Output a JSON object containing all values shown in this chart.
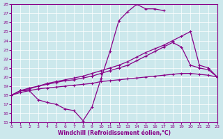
{
  "xlabel": "Windchill (Refroidissement éolien,°C)",
  "xlim": [
    0,
    23
  ],
  "ylim": [
    15,
    28
  ],
  "bg_color": "#cce8ec",
  "line_color": "#880088",
  "grid_color": "#ffffff",
  "line1_x": [
    0,
    1,
    2,
    3,
    4,
    5,
    6,
    7,
    8,
    9,
    10,
    11,
    12,
    13,
    14,
    15,
    16,
    17
  ],
  "line1_y": [
    18.0,
    18.5,
    18.5,
    17.5,
    17.2,
    17.0,
    16.5,
    16.3,
    15.2,
    16.7,
    19.8,
    22.8,
    26.2,
    27.2,
    28.0,
    27.5,
    27.5,
    27.3
  ],
  "line2_x": [
    0,
    1,
    2,
    3,
    4,
    5,
    6,
    7,
    8,
    9,
    10,
    11,
    12,
    13,
    14,
    15,
    16,
    17,
    18,
    19,
    20,
    21,
    22,
    23
  ],
  "line2_y": [
    18.0,
    18.3,
    18.5,
    18.7,
    18.8,
    18.9,
    19.0,
    19.1,
    19.2,
    19.3,
    19.5,
    19.6,
    19.7,
    19.8,
    19.9,
    20.0,
    20.1,
    20.2,
    20.3,
    20.4,
    20.4,
    20.3,
    20.2,
    20.0
  ],
  "line3_x": [
    0,
    1,
    2,
    3,
    4,
    5,
    6,
    7,
    8,
    9,
    10,
    11,
    12,
    13,
    14,
    15,
    16,
    17,
    18,
    19,
    20,
    21,
    22,
    23
  ],
  "line3_y": [
    18.0,
    18.5,
    18.7,
    19.0,
    19.2,
    19.4,
    19.6,
    19.7,
    19.9,
    20.1,
    20.4,
    20.7,
    21.0,
    21.3,
    21.8,
    22.3,
    22.8,
    23.3,
    23.8,
    23.3,
    21.3,
    21.0,
    20.8,
    20.0
  ],
  "line4_x": [
    0,
    1,
    2,
    3,
    4,
    5,
    6,
    7,
    8,
    9,
    10,
    11,
    12,
    13,
    14,
    15,
    16,
    17,
    18,
    19,
    20,
    21,
    22,
    23
  ],
  "line4_y": [
    18.0,
    18.5,
    18.8,
    19.0,
    19.3,
    19.5,
    19.7,
    19.9,
    20.1,
    20.4,
    20.7,
    21.0,
    21.3,
    21.7,
    22.2,
    22.7,
    23.1,
    23.5,
    24.0,
    24.5,
    25.0,
    21.3,
    21.0,
    20.0
  ]
}
